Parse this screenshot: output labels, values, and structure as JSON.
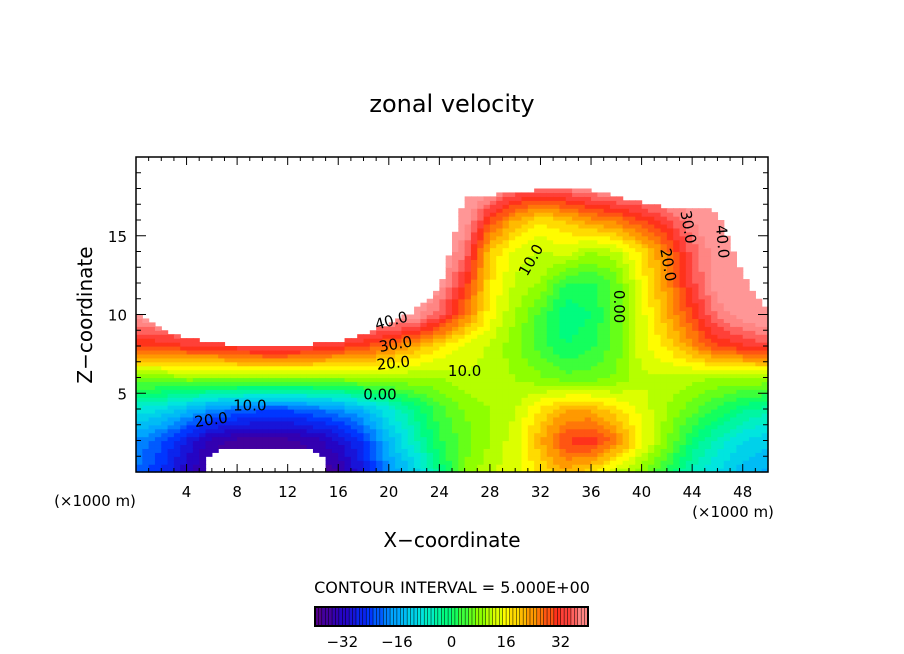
{
  "chart_data": {
    "type": "heatmap",
    "title": "zonal velocity",
    "xlabel": "X−coordinate",
    "ylabel": "Z−coordinate",
    "x_unit_left": "(×1000 m)",
    "x_unit_right": "(×1000 m)",
    "xlim": [
      0,
      50
    ],
    "ylim": [
      0,
      20
    ],
    "x_ticks": [
      4,
      8,
      12,
      16,
      20,
      24,
      28,
      32,
      36,
      40,
      44,
      48
    ],
    "y_ticks": [
      5,
      10,
      15
    ],
    "contour_interval_text": "CONTOUR INTERVAL = 5.000E+00",
    "contour_interval": 5,
    "colorbar": {
      "range": [
        -40,
        40
      ],
      "ticks": [
        -32,
        -16,
        0,
        16,
        32
      ],
      "tick_labels": [
        "−32",
        "−16",
        "0",
        "16",
        "32"
      ]
    },
    "grid_x": [
      0,
      2,
      4,
      6,
      8,
      10,
      12,
      14,
      16,
      18,
      20,
      22,
      24,
      26,
      28,
      30,
      32,
      34,
      36,
      38,
      40,
      42,
      44,
      46,
      48,
      50
    ],
    "grid_z": [
      0,
      2,
      4,
      6,
      8,
      10,
      12,
      14,
      16,
      18
    ],
    "values": [
      [
        -20,
        -25,
        -32,
        -36,
        -38,
        -38,
        -38,
        -38,
        -35,
        -28,
        -18,
        -12,
        -2,
        8,
        12,
        14,
        18,
        22,
        18,
        12,
        8,
        2,
        -6,
        -10,
        -14,
        -16
      ],
      [
        -18,
        -22,
        -28,
        -34,
        -36,
        -36,
        -36,
        -34,
        -30,
        -24,
        -14,
        -6,
        2,
        6,
        10,
        14,
        22,
        30,
        32,
        26,
        16,
        8,
        0,
        -6,
        -10,
        -12
      ],
      [
        -8,
        -10,
        -14,
        -18,
        -20,
        -22,
        -22,
        -20,
        -18,
        -14,
        -8,
        -2,
        4,
        8,
        10,
        12,
        18,
        22,
        22,
        18,
        14,
        10,
        6,
        2,
        -2,
        -4
      ],
      [
        8,
        8,
        9,
        9,
        9,
        9,
        9,
        9,
        9,
        10,
        10,
        10,
        10,
        12,
        12,
        10,
        8,
        6,
        6,
        8,
        12,
        12,
        11,
        10,
        10,
        10
      ],
      [
        30,
        30,
        32,
        32,
        34,
        36,
        36,
        34,
        32,
        30,
        26,
        22,
        18,
        14,
        12,
        8,
        4,
        0,
        2,
        6,
        14,
        18,
        24,
        30,
        32,
        34
      ],
      [
        42,
        44,
        44,
        44,
        44,
        44,
        44,
        44,
        44,
        44,
        44,
        42,
        36,
        26,
        16,
        10,
        4,
        -2,
        0,
        6,
        14,
        22,
        30,
        38,
        42,
        44
      ],
      [
        44,
        44,
        44,
        44,
        44,
        44,
        44,
        44,
        44,
        44,
        44,
        44,
        42,
        32,
        18,
        12,
        10,
        2,
        2,
        6,
        16,
        24,
        34,
        42,
        44,
        44
      ],
      [
        44,
        44,
        44,
        44,
        44,
        44,
        44,
        44,
        44,
        44,
        44,
        44,
        44,
        38,
        20,
        14,
        12,
        14,
        10,
        12,
        18,
        26,
        36,
        42,
        44,
        44
      ],
      [
        44,
        44,
        44,
        44,
        44,
        44,
        44,
        44,
        44,
        44,
        44,
        44,
        44,
        42,
        30,
        22,
        18,
        20,
        24,
        26,
        30,
        34,
        40,
        44,
        44,
        44
      ],
      [
        44,
        44,
        44,
        44,
        44,
        44,
        44,
        44,
        44,
        44,
        44,
        44,
        44,
        46,
        42,
        38,
        36,
        38,
        40,
        42,
        42,
        44,
        44,
        44,
        44,
        44
      ]
    ],
    "data_top_z": [
      10.2,
      9.0,
      8.5,
      8.2,
      8.0,
      8.0,
      8.0,
      8.1,
      8.3,
      8.7,
      9.4,
      10.2,
      11.6,
      17.5,
      17.6,
      17.7,
      17.9,
      18.0,
      17.9,
      17.5,
      17.1,
      16.8,
      16.7,
      16.6,
      12.4,
      10.2
    ],
    "missing_bottom_region": {
      "x": [
        5.5,
        15.2
      ],
      "z_top": 1.5
    },
    "contour_labels": [
      {
        "text": "40.0",
        "x": 20.3,
        "z": 9.3,
        "rotate": -15
      },
      {
        "text": "30.0",
        "x": 20.6,
        "z": 7.8,
        "rotate": -10
      },
      {
        "text": "20.0",
        "x": 20.4,
        "z": 6.6,
        "rotate": -6
      },
      {
        "text": "10.0",
        "x": 26.0,
        "z": 6.1,
        "rotate": 0
      },
      {
        "text": "0.00",
        "x": 19.3,
        "z": 4.6,
        "rotate": 0
      },
      {
        "text": "10.0",
        "x": 9.0,
        "z": 3.9,
        "rotate": 0
      },
      {
        "text": "20.0",
        "x": 6.0,
        "z": 3.0,
        "rotate": -8
      },
      {
        "text": "10.0",
        "x": 31.6,
        "z": 13.3,
        "rotate": -60
      },
      {
        "text": "0.00",
        "x": 37.8,
        "z": 10.5,
        "rotate": 90
      },
      {
        "text": "20.0",
        "x": 41.7,
        "z": 13.1,
        "rotate": 80
      },
      {
        "text": "30.0",
        "x": 43.3,
        "z": 15.5,
        "rotate": 80
      },
      {
        "text": "40.0",
        "x": 46.0,
        "z": 14.6,
        "rotate": 85
      }
    ]
  }
}
